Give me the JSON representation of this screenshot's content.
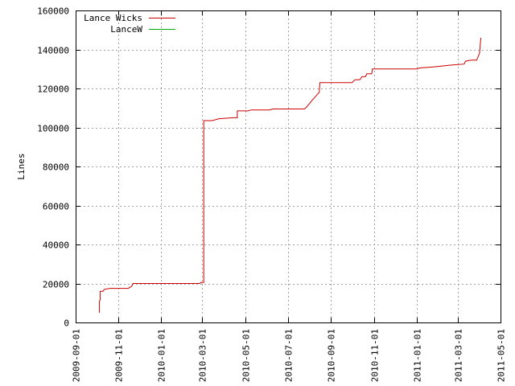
{
  "chart_data": {
    "type": "line",
    "ylabel": "Lines",
    "ylim": [
      0,
      160000
    ],
    "yticks": [
      0,
      20000,
      40000,
      60000,
      80000,
      100000,
      120000,
      140000,
      160000
    ],
    "xlim": [
      "2009-09-01",
      "2011-05-01"
    ],
    "xticks": [
      "2009-09-01",
      "2009-11-01",
      "2010-01-01",
      "2010-03-01",
      "2010-05-01",
      "2010-07-01",
      "2010-09-01",
      "2010-11-01",
      "2011-01-01",
      "2011-03-01",
      "2011-05-01"
    ],
    "grid": true,
    "legend": "top-left",
    "series": [
      {
        "name": "Lance Wicks",
        "color": "#cc0000",
        "points": [
          [
            "2009-10-05",
            5000
          ],
          [
            "2009-10-05",
            11000
          ],
          [
            "2009-10-06",
            11500
          ],
          [
            "2009-10-06",
            16000
          ],
          [
            "2009-10-10",
            16000
          ],
          [
            "2009-10-12",
            17000
          ],
          [
            "2009-10-20",
            17500
          ],
          [
            "2009-11-15",
            17500
          ],
          [
            "2009-11-20",
            18500
          ],
          [
            "2009-11-22",
            20000
          ],
          [
            "2010-02-25",
            20000
          ],
          [
            "2010-02-27",
            20500
          ],
          [
            "2010-03-03",
            20500
          ],
          [
            "2010-03-03",
            103500
          ],
          [
            "2010-03-15",
            103500
          ],
          [
            "2010-03-25",
            104500
          ],
          [
            "2010-04-15",
            105000
          ],
          [
            "2010-04-20",
            105000
          ],
          [
            "2010-04-20",
            108500
          ],
          [
            "2010-05-05",
            108500
          ],
          [
            "2010-05-10",
            109000
          ],
          [
            "2010-06-05",
            109000
          ],
          [
            "2010-06-10",
            109500
          ],
          [
            "2010-07-25",
            109500
          ],
          [
            "2010-07-28",
            110500
          ],
          [
            "2010-08-05",
            114000
          ],
          [
            "2010-08-15",
            118000
          ],
          [
            "2010-08-16",
            123000
          ],
          [
            "2010-10-01",
            123000
          ],
          [
            "2010-10-05",
            124500
          ],
          [
            "2010-10-12",
            124500
          ],
          [
            "2010-10-15",
            126000
          ],
          [
            "2010-10-20",
            126000
          ],
          [
            "2010-10-22",
            127500
          ],
          [
            "2010-10-29",
            127500
          ],
          [
            "2010-10-30",
            130000
          ],
          [
            "2011-01-02",
            130000
          ],
          [
            "2011-01-05",
            130500
          ],
          [
            "2011-01-25",
            131000
          ],
          [
            "2011-02-20",
            132000
          ],
          [
            "2011-03-10",
            132500
          ],
          [
            "2011-03-12",
            134000
          ],
          [
            "2011-03-20",
            134500
          ],
          [
            "2011-03-28",
            134500
          ],
          [
            "2011-04-01",
            138000
          ],
          [
            "2011-04-03",
            146000
          ]
        ]
      },
      {
        "name": "LanceW",
        "color": "#00aa00",
        "points": []
      }
    ]
  }
}
